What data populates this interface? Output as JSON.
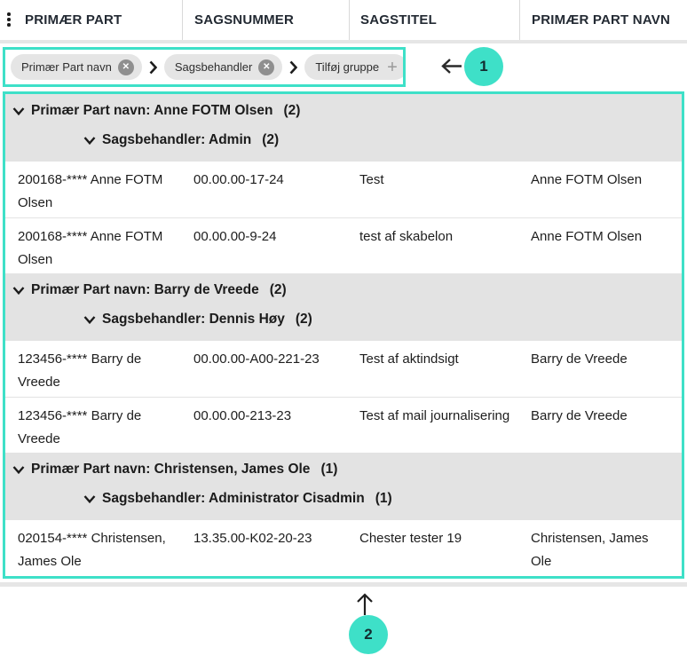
{
  "colors": {
    "accent_teal": "#3ee0c8",
    "group_header_bg": "#e3e3e3",
    "chip_bg": "#e5e5e5",
    "divider": "#e3e3e3"
  },
  "header": {
    "menu_icon": "kebab-vertical-icon",
    "columns": [
      "PRIMÆR PART",
      "SAGSNUMMER",
      "SAGSTITEL",
      "PRIMÆR PART NAVN"
    ]
  },
  "grouping_bar": {
    "chips": [
      {
        "label": "Primær Part navn",
        "icon": "remove-circle-icon"
      },
      {
        "label": "Sagsbehandler",
        "icon": "remove-circle-icon"
      },
      {
        "label": "Tilføj gruppe",
        "icon": "plus-icon"
      }
    ],
    "separator_icon": "chevron-right-icon",
    "back_arrow_icon": "arrow-left-icon",
    "badge": "1"
  },
  "table": {
    "groups": [
      {
        "title": "Primær Part navn: Anne FOTM Olsen",
        "count": "(2)",
        "subgroup": {
          "title": "Sagsbehandler: Admin",
          "count": "(2)"
        },
        "rows": [
          {
            "cells": [
              "200168-**** Anne FOTM Olsen",
              "00.00.00-17-24",
              "Test",
              "Anne FOTM Olsen"
            ]
          },
          {
            "cells": [
              "200168-**** Anne FOTM Olsen",
              "00.00.00-9-24",
              "test af skabelon",
              "Anne FOTM Olsen"
            ]
          }
        ]
      },
      {
        "title": "Primær Part navn: Barry de Vreede",
        "count": "(2)",
        "subgroup": {
          "title": "Sagsbehandler: Dennis Høy",
          "count": "(2)"
        },
        "rows": [
          {
            "cells": [
              "123456-**** Barry de Vreede",
              "00.00.00-A00-221-23",
              "Test af aktindsigt",
              "Barry de Vreede"
            ]
          },
          {
            "cells": [
              "123456-**** Barry de Vreede",
              "00.00.00-213-23",
              "Test af mail journalisering",
              "Barry de Vreede"
            ]
          }
        ]
      },
      {
        "title": "Primær Part navn: Christensen, James Ole",
        "count": "(1)",
        "subgroup": {
          "title": "Sagsbehandler: Administrator Cisadmin",
          "count": "(1)"
        },
        "rows": [
          {
            "cells": [
              "020154-**** Christensen, James Ole",
              "13.35.00-K02-20-23",
              "Chester tester 19",
              "Christensen, James Ole"
            ]
          }
        ]
      }
    ]
  },
  "footer": {
    "up_arrow_icon": "arrow-up-icon",
    "badge": "2"
  }
}
